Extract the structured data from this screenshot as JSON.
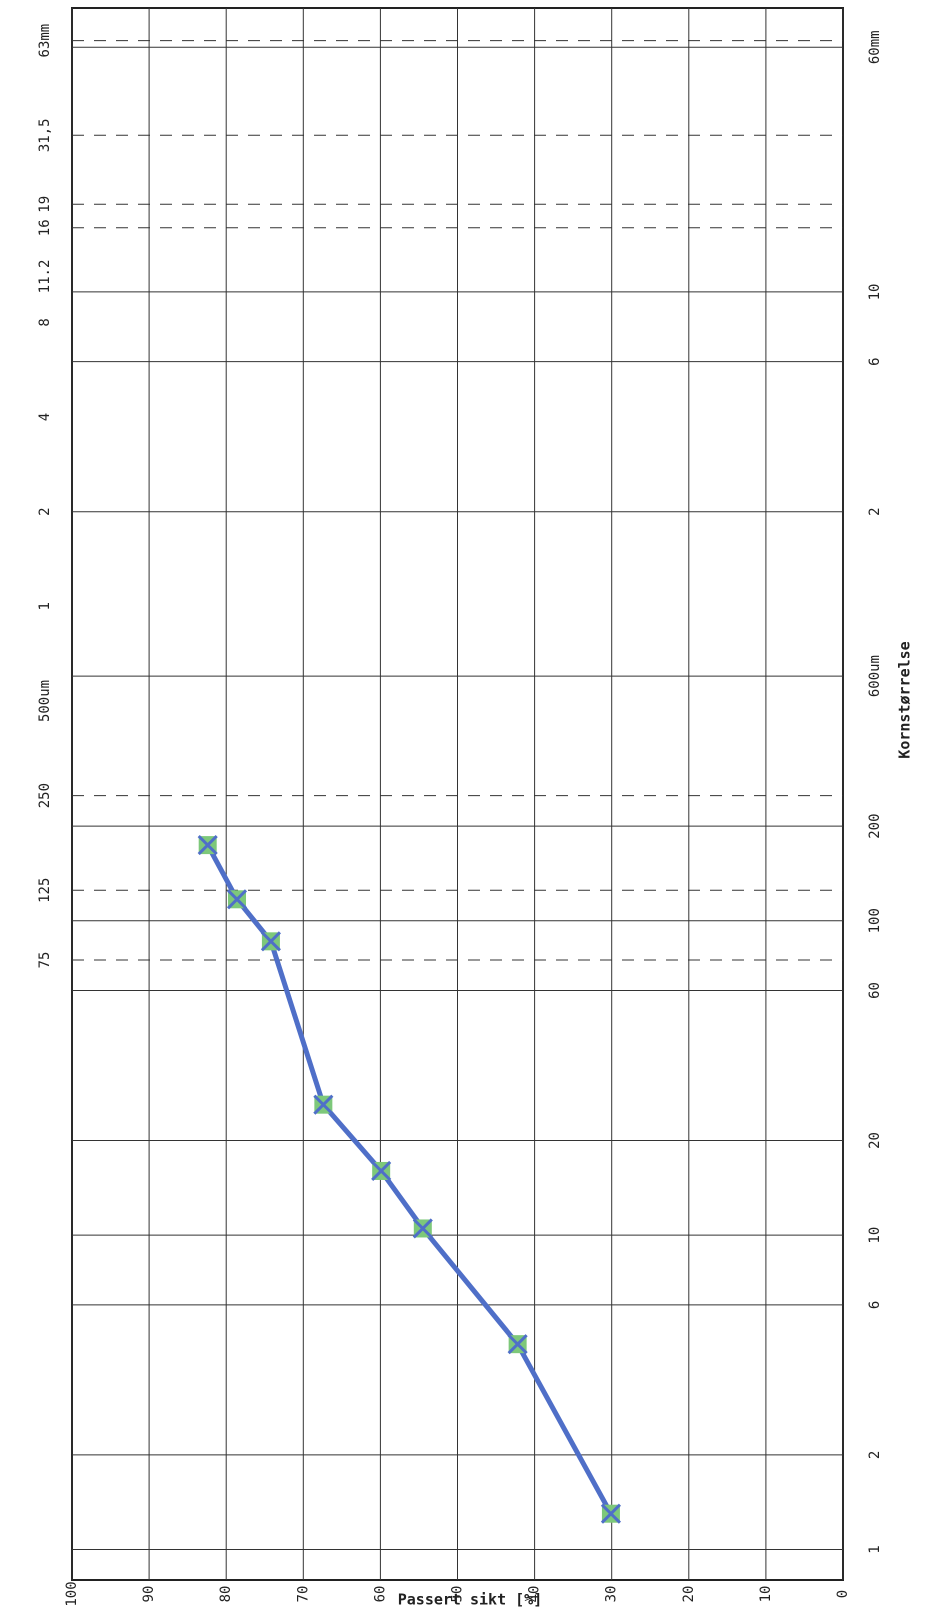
{
  "chart_data": {
    "type": "line",
    "x_label": "Kornstørrelse",
    "y_label": "Passert sikt [%]",
    "x": [
      1.3,
      4.5,
      10.5,
      16,
      26,
      86,
      117,
      174
    ],
    "values": [
      30.1,
      42.2,
      54.5,
      59.9,
      67.4,
      74.2,
      78.6,
      82.4
    ],
    "color": "#4f6fc8",
    "marker_color": "#7dc87a",
    "xlog": true,
    "xlim": [
      0.8,
      80000
    ],
    "ylim": [
      0,
      100
    ],
    "xticks": [
      1,
      2,
      6,
      10,
      20,
      60,
      100,
      200,
      {
        "value": 600,
        "label": "600um"
      },
      {
        "value": 2000,
        "label": "2"
      },
      {
        "value": 6000,
        "label": "6"
      },
      {
        "value": 10000,
        "label": "10"
      },
      {
        "value": 60000,
        "label": "60mm"
      }
    ],
    "sieve_ticks": [
      75,
      125,
      250,
      {
        "value": 500,
        "label": "500um"
      },
      {
        "value": 1000,
        "label": "1"
      },
      {
        "value": 2000,
        "label": "2"
      },
      {
        "value": 4000,
        "label": "4"
      },
      {
        "value": 8000,
        "label": "8"
      },
      {
        "value": 11200,
        "label": "11.2"
      },
      {
        "value": 16000,
        "label": "16"
      },
      {
        "value": 19000,
        "label": "19"
      },
      {
        "value": 31500,
        "label": "31,5"
      },
      {
        "value": 63000,
        "label": "63mm"
      }
    ],
    "dashed_sieves": [
      75,
      125,
      250,
      16000,
      19000,
      31500,
      63000
    ],
    "yticks": [
      0,
      10,
      20,
      30,
      40,
      50,
      60,
      70,
      80,
      90,
      100
    ],
    "grid": true
  }
}
